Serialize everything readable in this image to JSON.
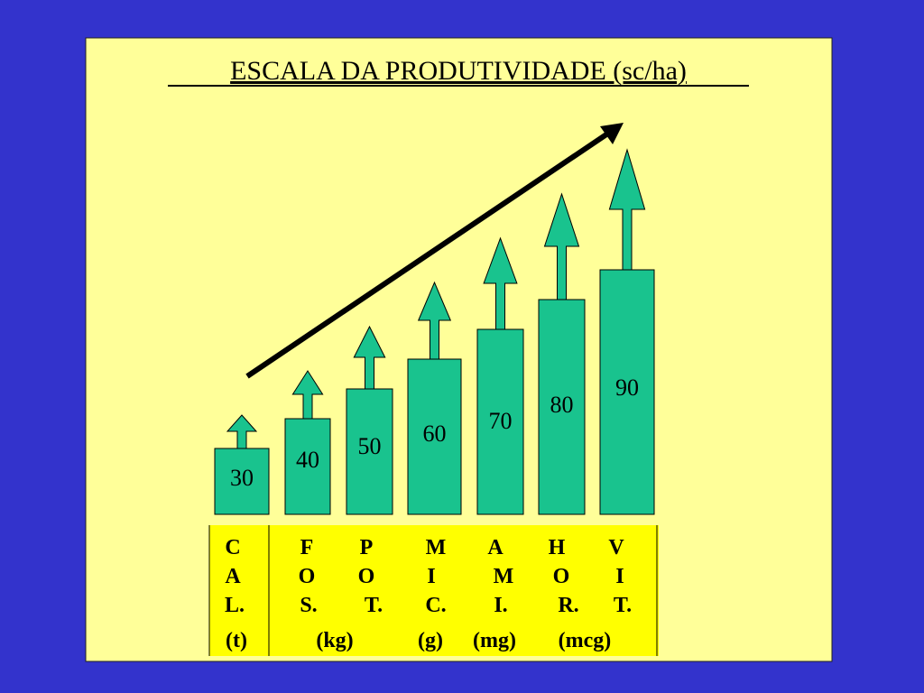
{
  "title": "ESCALA DA PRODUTIVIDADE (sc/ha)",
  "bars": [
    "30",
    "40",
    "50",
    "60",
    "70",
    "80",
    "90"
  ],
  "table": {
    "letters": [
      [
        "C",
        "A",
        "L."
      ],
      [
        "F",
        "O",
        "S."
      ],
      [
        "P",
        "O",
        "T."
      ],
      [
        "M",
        "I",
        "C."
      ],
      [
        "A",
        "M",
        "I."
      ],
      [
        "H",
        "O",
        "R."
      ],
      [
        "V",
        "I",
        "T."
      ]
    ],
    "units": [
      "(t)",
      "(kg)",
      "(g)",
      "(mg)",
      "(mcg)"
    ]
  }
}
